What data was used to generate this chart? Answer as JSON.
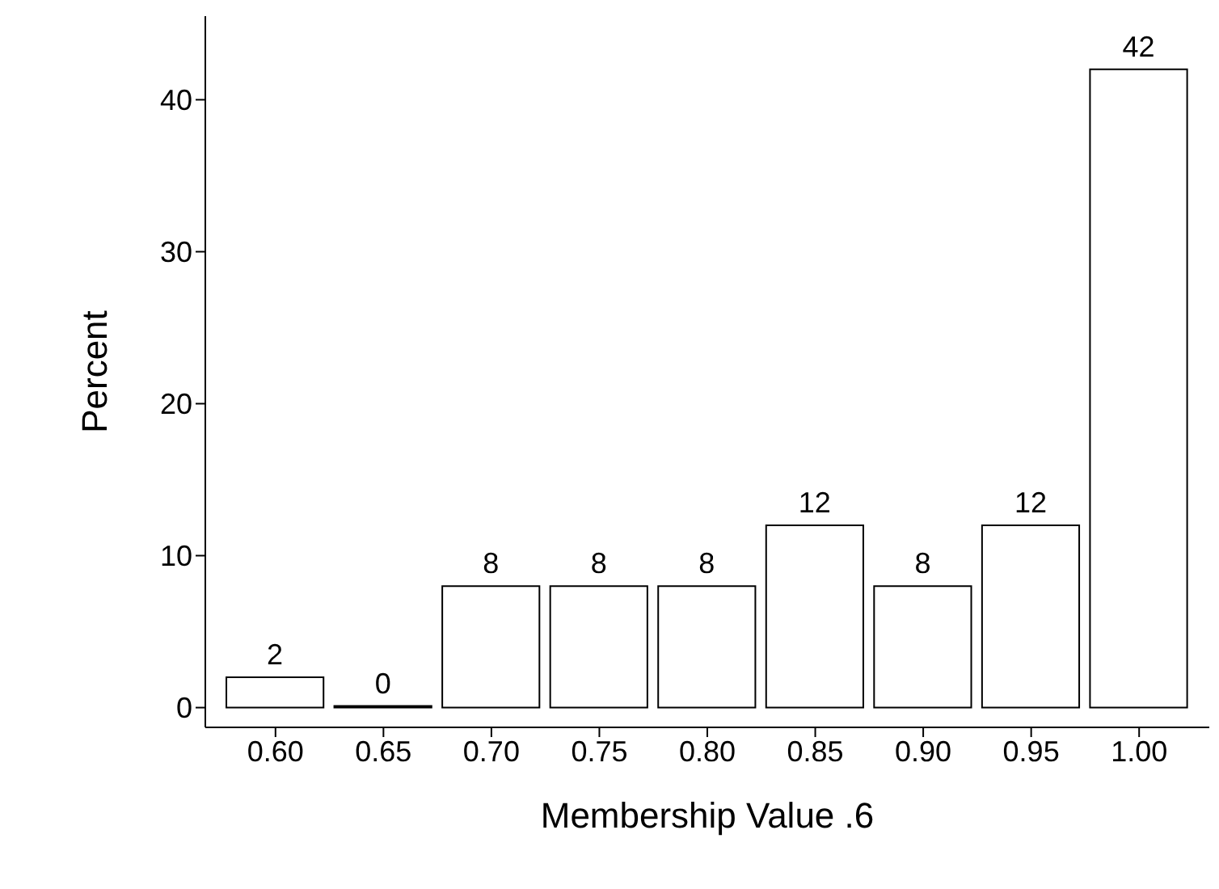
{
  "chart_data": {
    "type": "histogram",
    "xlabel": "Membership Value .6",
    "ylabel": "Percent",
    "bins": [
      0.575,
      0.625,
      0.675,
      0.725,
      0.775,
      0.825,
      0.875,
      0.925,
      0.975,
      1.025
    ],
    "values": [
      2,
      0,
      8,
      8,
      8,
      12,
      8,
      12,
      42
    ],
    "color": "#ffffff",
    "xlim": [
      0.5675,
      1.0325
    ],
    "xticks": [
      {
        "value": 0.6,
        "label": "0.60"
      },
      {
        "value": 0.65,
        "label": "0.65"
      },
      {
        "value": 0.7,
        "label": "0.70"
      },
      {
        "value": 0.75,
        "label": "0.75"
      },
      {
        "value": 0.8,
        "label": "0.80"
      },
      {
        "value": 0.85,
        "label": "0.85"
      },
      {
        "value": 0.9,
        "label": "0.90"
      },
      {
        "value": 0.95,
        "label": "0.95"
      },
      {
        "value": 1.0,
        "label": "1.00"
      }
    ],
    "ylim": [
      -1.3,
      45.5
    ],
    "yticks": [
      0,
      10,
      20,
      30,
      40
    ],
    "data_labels": true,
    "grid": false
  }
}
